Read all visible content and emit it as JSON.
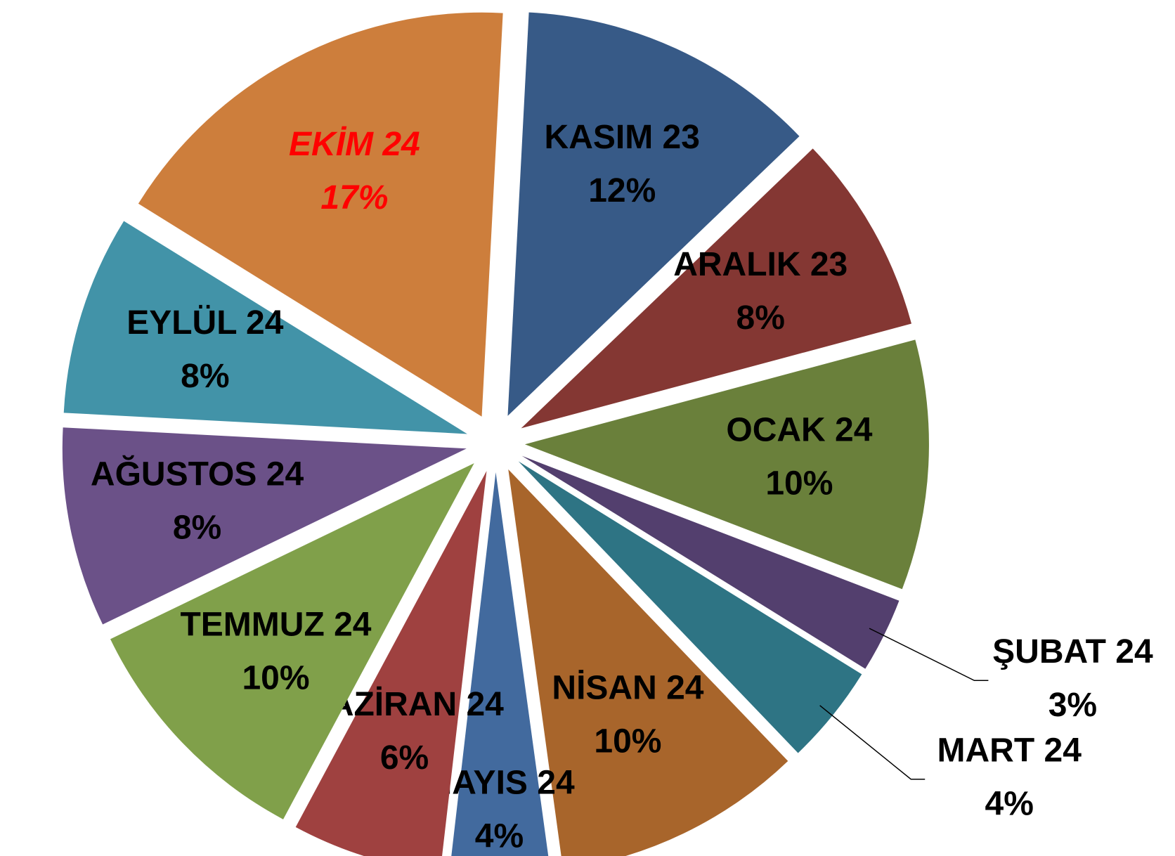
{
  "chart_data": {
    "type": "pie",
    "categories": [
      "KASIM 23",
      "ARALIK 23",
      "OCAK 24",
      "ŞUBAT 24",
      "MART 24",
      "NİSAN 24",
      "MAYIS 24",
      "HAZİRAN 24",
      "TEMMUZ 24",
      "AĞUSTOS 24",
      "EYLÜL 24",
      "EKİM 24"
    ],
    "values": [
      12,
      8,
      10,
      3,
      4,
      10,
      4,
      6,
      10,
      8,
      8,
      17
    ],
    "value_labels": [
      "12%",
      "8%",
      "10%",
      "3%",
      "4%",
      "10%",
      "4%",
      "6%",
      "10%",
      "8%",
      "8%",
      "17%"
    ],
    "colors": [
      "#375a87",
      "#843733",
      "#6a803b",
      "#533f6e",
      "#2e7484",
      "#a8652b",
      "#426a9e",
      "#9f4140",
      "#80a04a",
      "#6b5188",
      "#4293a8",
      "#cd7e3c"
    ],
    "label_colors": [
      "#000000",
      "#000000",
      "#000000",
      "#000000",
      "#000000",
      "#000000",
      "#000000",
      "#000000",
      "#000000",
      "#000000",
      "#000000",
      "#ff0000"
    ]
  }
}
